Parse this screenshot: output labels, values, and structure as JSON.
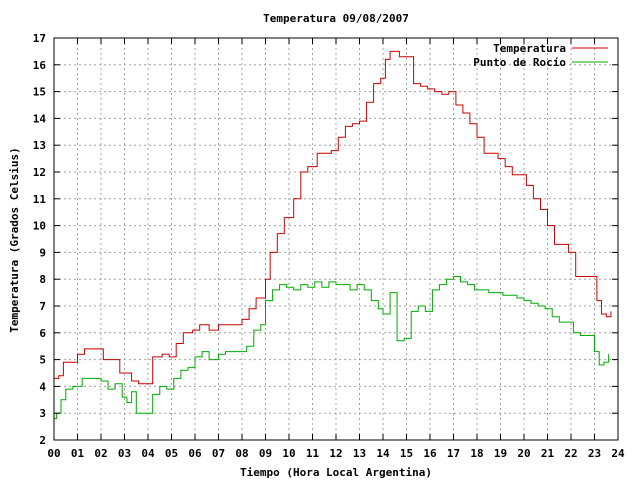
{
  "chart_data": {
    "type": "line",
    "title": "Temperatura 09/08/2007",
    "xlabel": "Tiempo (Hora Local Argentina)",
    "ylabel": "Temperatura (Grados Celsius)",
    "xlim": [
      0,
      24
    ],
    "ylim": [
      2,
      17
    ],
    "x_ticks": [
      "00",
      "01",
      "02",
      "03",
      "04",
      "05",
      "06",
      "07",
      "08",
      "09",
      "10",
      "11",
      "12",
      "13",
      "14",
      "15",
      "16",
      "17",
      "18",
      "19",
      "20",
      "21",
      "22",
      "23",
      "24"
    ],
    "y_ticks": [
      "2",
      "3",
      "4",
      "5",
      "6",
      "7",
      "8",
      "9",
      "10",
      "11",
      "12",
      "13",
      "14",
      "15",
      "16",
      "17"
    ],
    "grid": true,
    "legend": "top-right",
    "series": [
      {
        "name": "Temperatura",
        "color": "#cc0000",
        "x": [
          0,
          0.2,
          0.4,
          0.6,
          1.0,
          1.3,
          1.8,
          2.1,
          2.4,
          2.8,
          3.0,
          3.3,
          3.6,
          3.9,
          4.2,
          4.6,
          4.9,
          5.2,
          5.5,
          5.9,
          6.2,
          6.6,
          7.0,
          7.3,
          7.7,
          8.0,
          8.3,
          8.6,
          8.9,
          9.0,
          9.2,
          9.5,
          9.8,
          10.0,
          10.2,
          10.5,
          10.8,
          11.0,
          11.2,
          11.5,
          11.8,
          12.1,
          12.4,
          12.7,
          13.0,
          13.3,
          13.6,
          13.9,
          14.1,
          14.3,
          14.5,
          14.7,
          15.0,
          15.3,
          15.6,
          15.9,
          16.2,
          16.5,
          16.8,
          17.1,
          17.4,
          17.7,
          18.0,
          18.3,
          18.6,
          18.9,
          19.2,
          19.5,
          19.8,
          20.1,
          20.4,
          20.7,
          21.0,
          21.3,
          21.6,
          21.9,
          22.2,
          22.5,
          22.8,
          23.1,
          23.3,
          23.5,
          23.7
        ],
        "values": [
          4.3,
          4.4,
          4.9,
          4.9,
          5.2,
          5.4,
          5.4,
          5.0,
          5.0,
          4.5,
          4.5,
          4.2,
          4.1,
          4.1,
          5.1,
          5.2,
          5.1,
          5.6,
          6.0,
          6.1,
          6.3,
          6.1,
          6.3,
          6.3,
          6.3,
          6.5,
          6.9,
          7.3,
          7.3,
          8.0,
          9.0,
          9.7,
          10.3,
          10.3,
          11.0,
          12.0,
          12.2,
          12.2,
          12.7,
          12.7,
          12.8,
          13.3,
          13.7,
          13.8,
          13.9,
          14.6,
          15.3,
          15.5,
          16.2,
          16.5,
          16.5,
          16.3,
          16.3,
          15.3,
          15.2,
          15.1,
          15.0,
          14.9,
          15.0,
          14.5,
          14.2,
          13.8,
          13.3,
          12.7,
          12.7,
          12.5,
          12.2,
          11.9,
          11.9,
          11.5,
          11.0,
          10.6,
          10.0,
          9.3,
          9.3,
          9.0,
          8.1,
          8.1,
          8.1,
          7.2,
          6.7,
          6.6,
          6.8
        ]
      },
      {
        "name": "Punto de Rocío",
        "color": "#00aa00",
        "x": [
          0,
          0.1,
          0.3,
          0.5,
          0.8,
          1.2,
          1.6,
          2.0,
          2.3,
          2.6,
          2.9,
          3.1,
          3.3,
          3.5,
          3.8,
          4.0,
          4.2,
          4.5,
          4.8,
          5.1,
          5.4,
          5.7,
          6.0,
          6.3,
          6.6,
          7.0,
          7.3,
          7.6,
          7.9,
          8.2,
          8.5,
          8.8,
          9.0,
          9.3,
          9.6,
          9.9,
          10.2,
          10.5,
          10.8,
          11.1,
          11.4,
          11.7,
          12.0,
          12.3,
          12.6,
          12.9,
          13.2,
          13.5,
          13.8,
          14.0,
          14.3,
          14.6,
          14.9,
          15.2,
          15.5,
          15.8,
          16.1,
          16.4,
          16.7,
          17.0,
          17.3,
          17.6,
          17.9,
          18.2,
          18.5,
          18.8,
          19.1,
          19.4,
          19.7,
          20.0,
          20.3,
          20.6,
          20.9,
          21.2,
          21.5,
          21.8,
          22.1,
          22.4,
          22.7,
          23.0,
          23.2,
          23.4,
          23.6
        ],
        "values": [
          2.8,
          3.0,
          3.5,
          3.9,
          4.0,
          4.3,
          4.3,
          4.2,
          3.9,
          4.1,
          3.6,
          3.4,
          3.8,
          3.0,
          3.0,
          3.0,
          3.7,
          4.0,
          3.9,
          4.3,
          4.6,
          4.7,
          5.1,
          5.3,
          5.0,
          5.2,
          5.3,
          5.3,
          5.3,
          5.5,
          6.1,
          6.3,
          7.2,
          7.6,
          7.8,
          7.7,
          7.6,
          7.8,
          7.7,
          7.9,
          7.7,
          7.9,
          7.8,
          7.8,
          7.6,
          7.8,
          7.6,
          7.2,
          6.9,
          6.7,
          7.5,
          5.7,
          5.8,
          6.8,
          7.0,
          6.8,
          7.6,
          7.8,
          8.0,
          8.1,
          7.9,
          7.8,
          7.6,
          7.6,
          7.5,
          7.5,
          7.4,
          7.4,
          7.3,
          7.2,
          7.1,
          7.0,
          6.9,
          6.6,
          6.4,
          6.4,
          6.0,
          5.9,
          5.9,
          5.3,
          4.8,
          4.9,
          5.2
        ]
      }
    ]
  }
}
